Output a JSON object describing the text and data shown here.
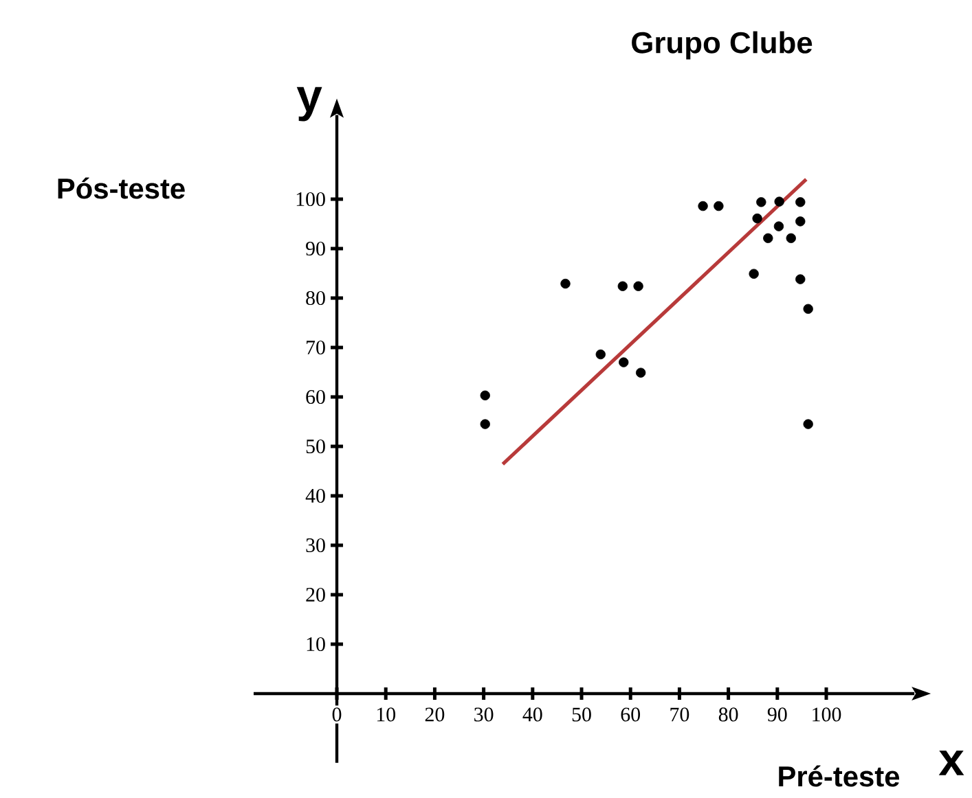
{
  "chart_data": {
    "type": "scatter",
    "title": "Grupo Clube",
    "xlabel": "x",
    "ylabel": "y",
    "annotations": [
      "Pré-teste",
      "Pós-teste"
    ],
    "xlim": [
      -17,
      118
    ],
    "ylim": [
      -14,
      117
    ],
    "xticks": [
      0,
      10,
      20,
      30,
      40,
      50,
      60,
      70,
      80,
      90,
      100
    ],
    "yticks": [
      10,
      20,
      30,
      40,
      50,
      60,
      70,
      80,
      90,
      100
    ],
    "marker": "circle",
    "series": [
      {
        "color": "#000000",
        "x": [
          30.3,
          30.3,
          46.7,
          53.9,
          58.6,
          58.4,
          61.6,
          62.1,
          74.8,
          78,
          85.2,
          86.7,
          85.9,
          88.1,
          90.3,
          90.4,
          92.8,
          94.7,
          94.7,
          94.7,
          96.3,
          96.3
        ],
        "values": [
          60.3,
          54.5,
          82.9,
          68.6,
          67,
          82.4,
          82.4,
          64.9,
          98.6,
          98.6,
          84.9,
          99.4,
          96.1,
          92.1,
          94.5,
          99.5,
          92.1,
          99.4,
          95.5,
          83.8,
          77.8,
          54.5
        ]
      },
      {
        "type": "line",
        "color": "#b83a3a",
        "marker": "none",
        "x": [
          33.9,
          95.9
        ],
        "values": [
          46.4,
          104
        ]
      }
    ]
  }
}
